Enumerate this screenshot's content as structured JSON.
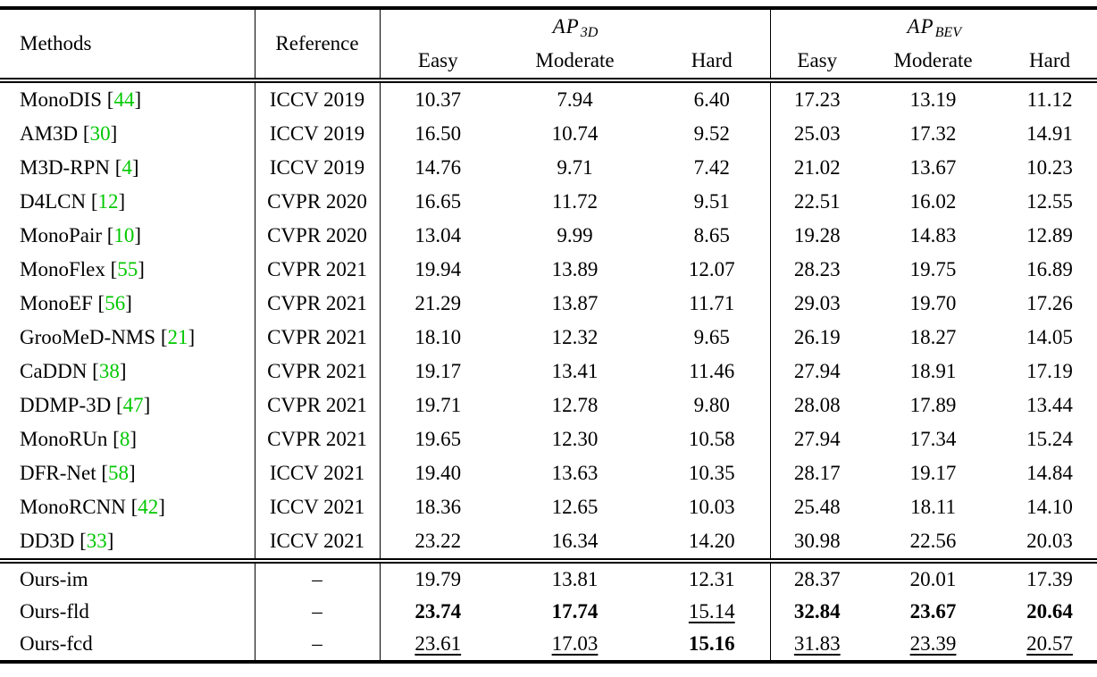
{
  "table": {
    "colors": {
      "citation_green": "#00c800"
    },
    "headers": {
      "methods": "Methods",
      "reference": "Reference",
      "ap3d": {
        "main": "AP",
        "sub": "3D"
      },
      "apbev": {
        "main": "AP",
        "sub": "BEV"
      },
      "subheaders": [
        "Easy",
        "Moderate",
        "Hard"
      ]
    },
    "rows": [
      {
        "method": "MonoDIS",
        "cite": "44",
        "reference": "ICCV 2019",
        "values": [
          "10.37",
          "7.94",
          "6.40",
          "17.23",
          "13.19",
          "11.12"
        ],
        "styles": [
          "",
          "",
          "",
          "",
          "",
          ""
        ]
      },
      {
        "method": "AM3D",
        "cite": "30",
        "reference": "ICCV 2019",
        "values": [
          "16.50",
          "10.74",
          "9.52",
          "25.03",
          "17.32",
          "14.91"
        ],
        "styles": [
          "",
          "",
          "",
          "",
          "",
          ""
        ]
      },
      {
        "method": "M3D-RPN",
        "cite": "4",
        "reference": "ICCV 2019",
        "values": [
          "14.76",
          "9.71",
          "7.42",
          "21.02",
          "13.67",
          "10.23"
        ],
        "styles": [
          "",
          "",
          "",
          "",
          "",
          ""
        ]
      },
      {
        "method": "D4LCN",
        "cite": "12",
        "reference": "CVPR 2020",
        "values": [
          "16.65",
          "11.72",
          "9.51",
          "22.51",
          "16.02",
          "12.55"
        ],
        "styles": [
          "",
          "",
          "",
          "",
          "",
          ""
        ]
      },
      {
        "method": "MonoPair",
        "cite": "10",
        "reference": "CVPR 2020",
        "values": [
          "13.04",
          "9.99",
          "8.65",
          "19.28",
          "14.83",
          "12.89"
        ],
        "styles": [
          "",
          "",
          "",
          "",
          "",
          ""
        ]
      },
      {
        "method": "MonoFlex",
        "cite": "55",
        "reference": "CVPR 2021",
        "values": [
          "19.94",
          "13.89",
          "12.07",
          "28.23",
          "19.75",
          "16.89"
        ],
        "styles": [
          "",
          "",
          "",
          "",
          "",
          ""
        ]
      },
      {
        "method": "MonoEF",
        "cite": "56",
        "reference": "CVPR 2021",
        "values": [
          "21.29",
          "13.87",
          "11.71",
          "29.03",
          "19.70",
          "17.26"
        ],
        "styles": [
          "",
          "",
          "",
          "",
          "",
          ""
        ]
      },
      {
        "method": "GrooMeD-NMS",
        "cite": "21",
        "reference": "CVPR 2021",
        "values": [
          "18.10",
          "12.32",
          "9.65",
          "26.19",
          "18.27",
          "14.05"
        ],
        "styles": [
          "",
          "",
          "",
          "",
          "",
          ""
        ]
      },
      {
        "method": "CaDDN",
        "cite": "38",
        "reference": "CVPR 2021",
        "values": [
          "19.17",
          "13.41",
          "11.46",
          "27.94",
          "18.91",
          "17.19"
        ],
        "styles": [
          "",
          "",
          "",
          "",
          "",
          ""
        ]
      },
      {
        "method": "DDMP-3D",
        "cite": "47",
        "reference": "CVPR 2021",
        "values": [
          "19.71",
          "12.78",
          "9.80",
          "28.08",
          "17.89",
          "13.44"
        ],
        "styles": [
          "",
          "",
          "",
          "",
          "",
          ""
        ]
      },
      {
        "method": "MonoRUn",
        "cite": "8",
        "reference": "CVPR 2021",
        "values": [
          "19.65",
          "12.30",
          "10.58",
          "27.94",
          "17.34",
          "15.24"
        ],
        "styles": [
          "",
          "",
          "",
          "",
          "",
          ""
        ]
      },
      {
        "method": "DFR-Net",
        "cite": "58",
        "reference": "ICCV 2021",
        "values": [
          "19.40",
          "13.63",
          "10.35",
          "28.17",
          "19.17",
          "14.84"
        ],
        "styles": [
          "",
          "",
          "",
          "",
          "",
          ""
        ]
      },
      {
        "method": "MonoRCNN",
        "cite": "42",
        "reference": "ICCV 2021",
        "values": [
          "18.36",
          "12.65",
          "10.03",
          "25.48",
          "18.11",
          "14.10"
        ],
        "styles": [
          "",
          "",
          "",
          "",
          "",
          ""
        ]
      },
      {
        "method": "DD3D",
        "cite": "33",
        "reference": "ICCV 2021",
        "values": [
          "23.22",
          "16.34",
          "14.20",
          "30.98",
          "22.56",
          "20.03"
        ],
        "styles": [
          "",
          "",
          "",
          "",
          "",
          ""
        ]
      }
    ],
    "ours_rows": [
      {
        "method": "Ours-im",
        "cite": "",
        "reference": "–",
        "values": [
          "19.79",
          "13.81",
          "12.31",
          "28.37",
          "20.01",
          "17.39"
        ],
        "styles": [
          "",
          "",
          "",
          "",
          "",
          ""
        ]
      },
      {
        "method": "Ours-fld",
        "cite": "",
        "reference": "–",
        "values": [
          "23.74",
          "17.74",
          "15.14",
          "32.84",
          "23.67",
          "20.64"
        ],
        "styles": [
          "b",
          "b",
          "u",
          "b",
          "b",
          "b"
        ]
      },
      {
        "method": "Ours-fcd",
        "cite": "",
        "reference": "–",
        "values": [
          "23.61",
          "17.03",
          "15.16",
          "31.83",
          "23.39",
          "20.57"
        ],
        "styles": [
          "u",
          "u",
          "b",
          "u",
          "u",
          "u"
        ]
      }
    ]
  }
}
